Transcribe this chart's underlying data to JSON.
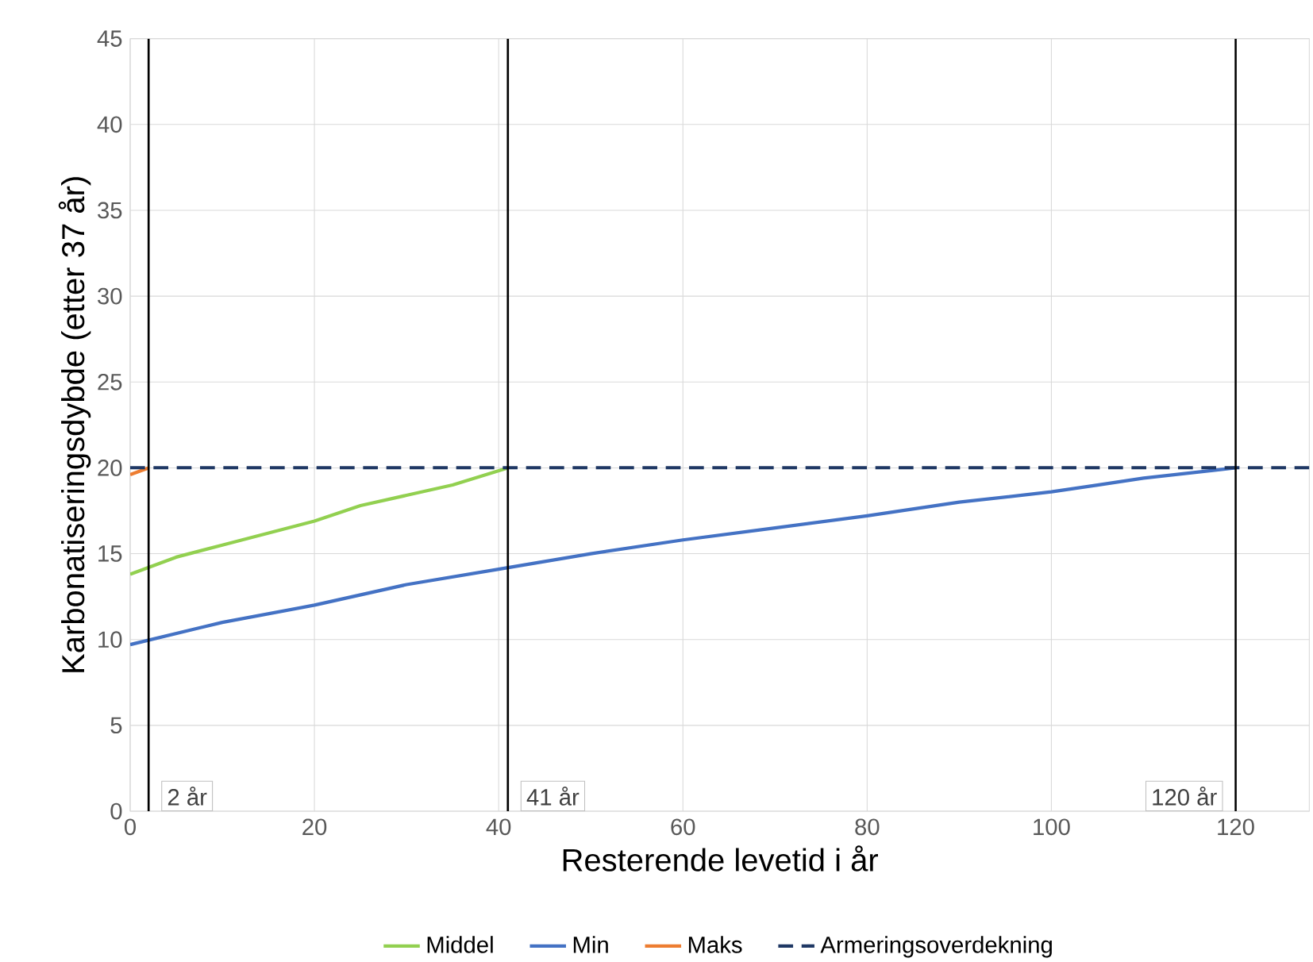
{
  "chart_data": {
    "type": "line",
    "xlabel": "Resterende levetid i år",
    "ylabel": "Karbonatiseringsdybde (etter 37 år)",
    "xlim": [
      0,
      128
    ],
    "ylim": [
      0,
      45
    ],
    "xticks": [
      0,
      20,
      40,
      60,
      80,
      100,
      120
    ],
    "yticks": [
      0,
      5,
      10,
      15,
      20,
      25,
      30,
      35,
      40,
      45
    ],
    "grid": true,
    "legend": "bottom",
    "marker": "none",
    "series": [
      {
        "name": "Middel",
        "color": "#92d050",
        "x": [
          0,
          5,
          10,
          20,
          25,
          30,
          35,
          41
        ],
        "values": [
          13.8,
          14.8,
          15.5,
          16.9,
          17.8,
          18.4,
          19.0,
          20
        ]
      },
      {
        "name": "Min",
        "color": "#4472c4",
        "x": [
          0,
          10,
          20,
          30,
          40,
          50,
          60,
          70,
          80,
          90,
          100,
          105,
          110,
          120
        ],
        "values": [
          9.7,
          11,
          12,
          13.2,
          14.1,
          15,
          15.8,
          16.5,
          17.2,
          18,
          18.6,
          19,
          19.4,
          20
        ]
      },
      {
        "name": "Maks",
        "color": "#ed7d31",
        "x": [
          0,
          2
        ],
        "values": [
          19.6,
          20
        ]
      },
      {
        "name": "Armeringsoverdekning",
        "color": "#1f3864",
        "line_style": "dashed",
        "x": [
          0,
          128
        ],
        "values": [
          20,
          20
        ]
      }
    ],
    "ref_lines": [
      {
        "axis": "x",
        "value": 2,
        "label": "2 år",
        "color": "#000000"
      },
      {
        "axis": "x",
        "value": 41,
        "label": "41 år",
        "color": "#000000"
      },
      {
        "axis": "x",
        "value": 120,
        "label": "120 år",
        "color": "#000000"
      }
    ]
  }
}
